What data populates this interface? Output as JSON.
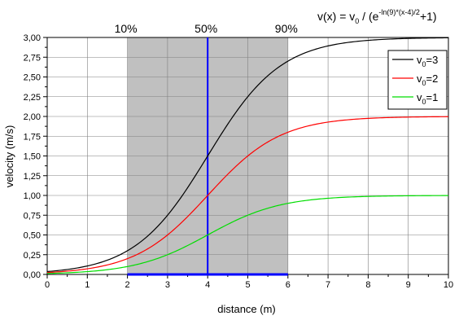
{
  "chart_data": {
    "type": "line",
    "formula": {
      "lhs": "v(x) = v",
      "lhs_sub": "0",
      "mid": " / (e",
      "exp": "-ln(9)*(x-4)/2",
      "rhs": "+1)"
    },
    "xlabel": "distance (m)",
    "ylabel": "velocity (m/s)",
    "xlim": [
      0,
      10
    ],
    "ylim": [
      0,
      3
    ],
    "x_ticks": [
      "0",
      "1",
      "2",
      "3",
      "4",
      "5",
      "6",
      "7",
      "8",
      "9",
      "10"
    ],
    "y_ticks": [
      "0,00",
      "0,25",
      "0,50",
      "0,75",
      "1,00",
      "1,25",
      "1,50",
      "1,75",
      "2,00",
      "2,25",
      "2,50",
      "2,75",
      "3,00"
    ],
    "grid": true,
    "shaded_region": {
      "x_start": 2,
      "x_end": 6,
      "color": "#c0c0c0"
    },
    "vertical_line": {
      "x": 4,
      "color": "#0000ff"
    },
    "percent_labels": [
      {
        "x": 2,
        "text": "10%"
      },
      {
        "x": 4,
        "text": "50%"
      },
      {
        "x": 6,
        "text": "90%"
      }
    ],
    "legend": {
      "placement": "top-right",
      "prefix": "v",
      "subscript": "0"
    },
    "series": [
      {
        "label_value": "=3",
        "v0": 3,
        "color": "#000000"
      },
      {
        "label_value": "=2",
        "v0": 2,
        "color": "#ff0000"
      },
      {
        "label_value": "=1",
        "v0": 1,
        "color": "#00dd00"
      }
    ]
  }
}
